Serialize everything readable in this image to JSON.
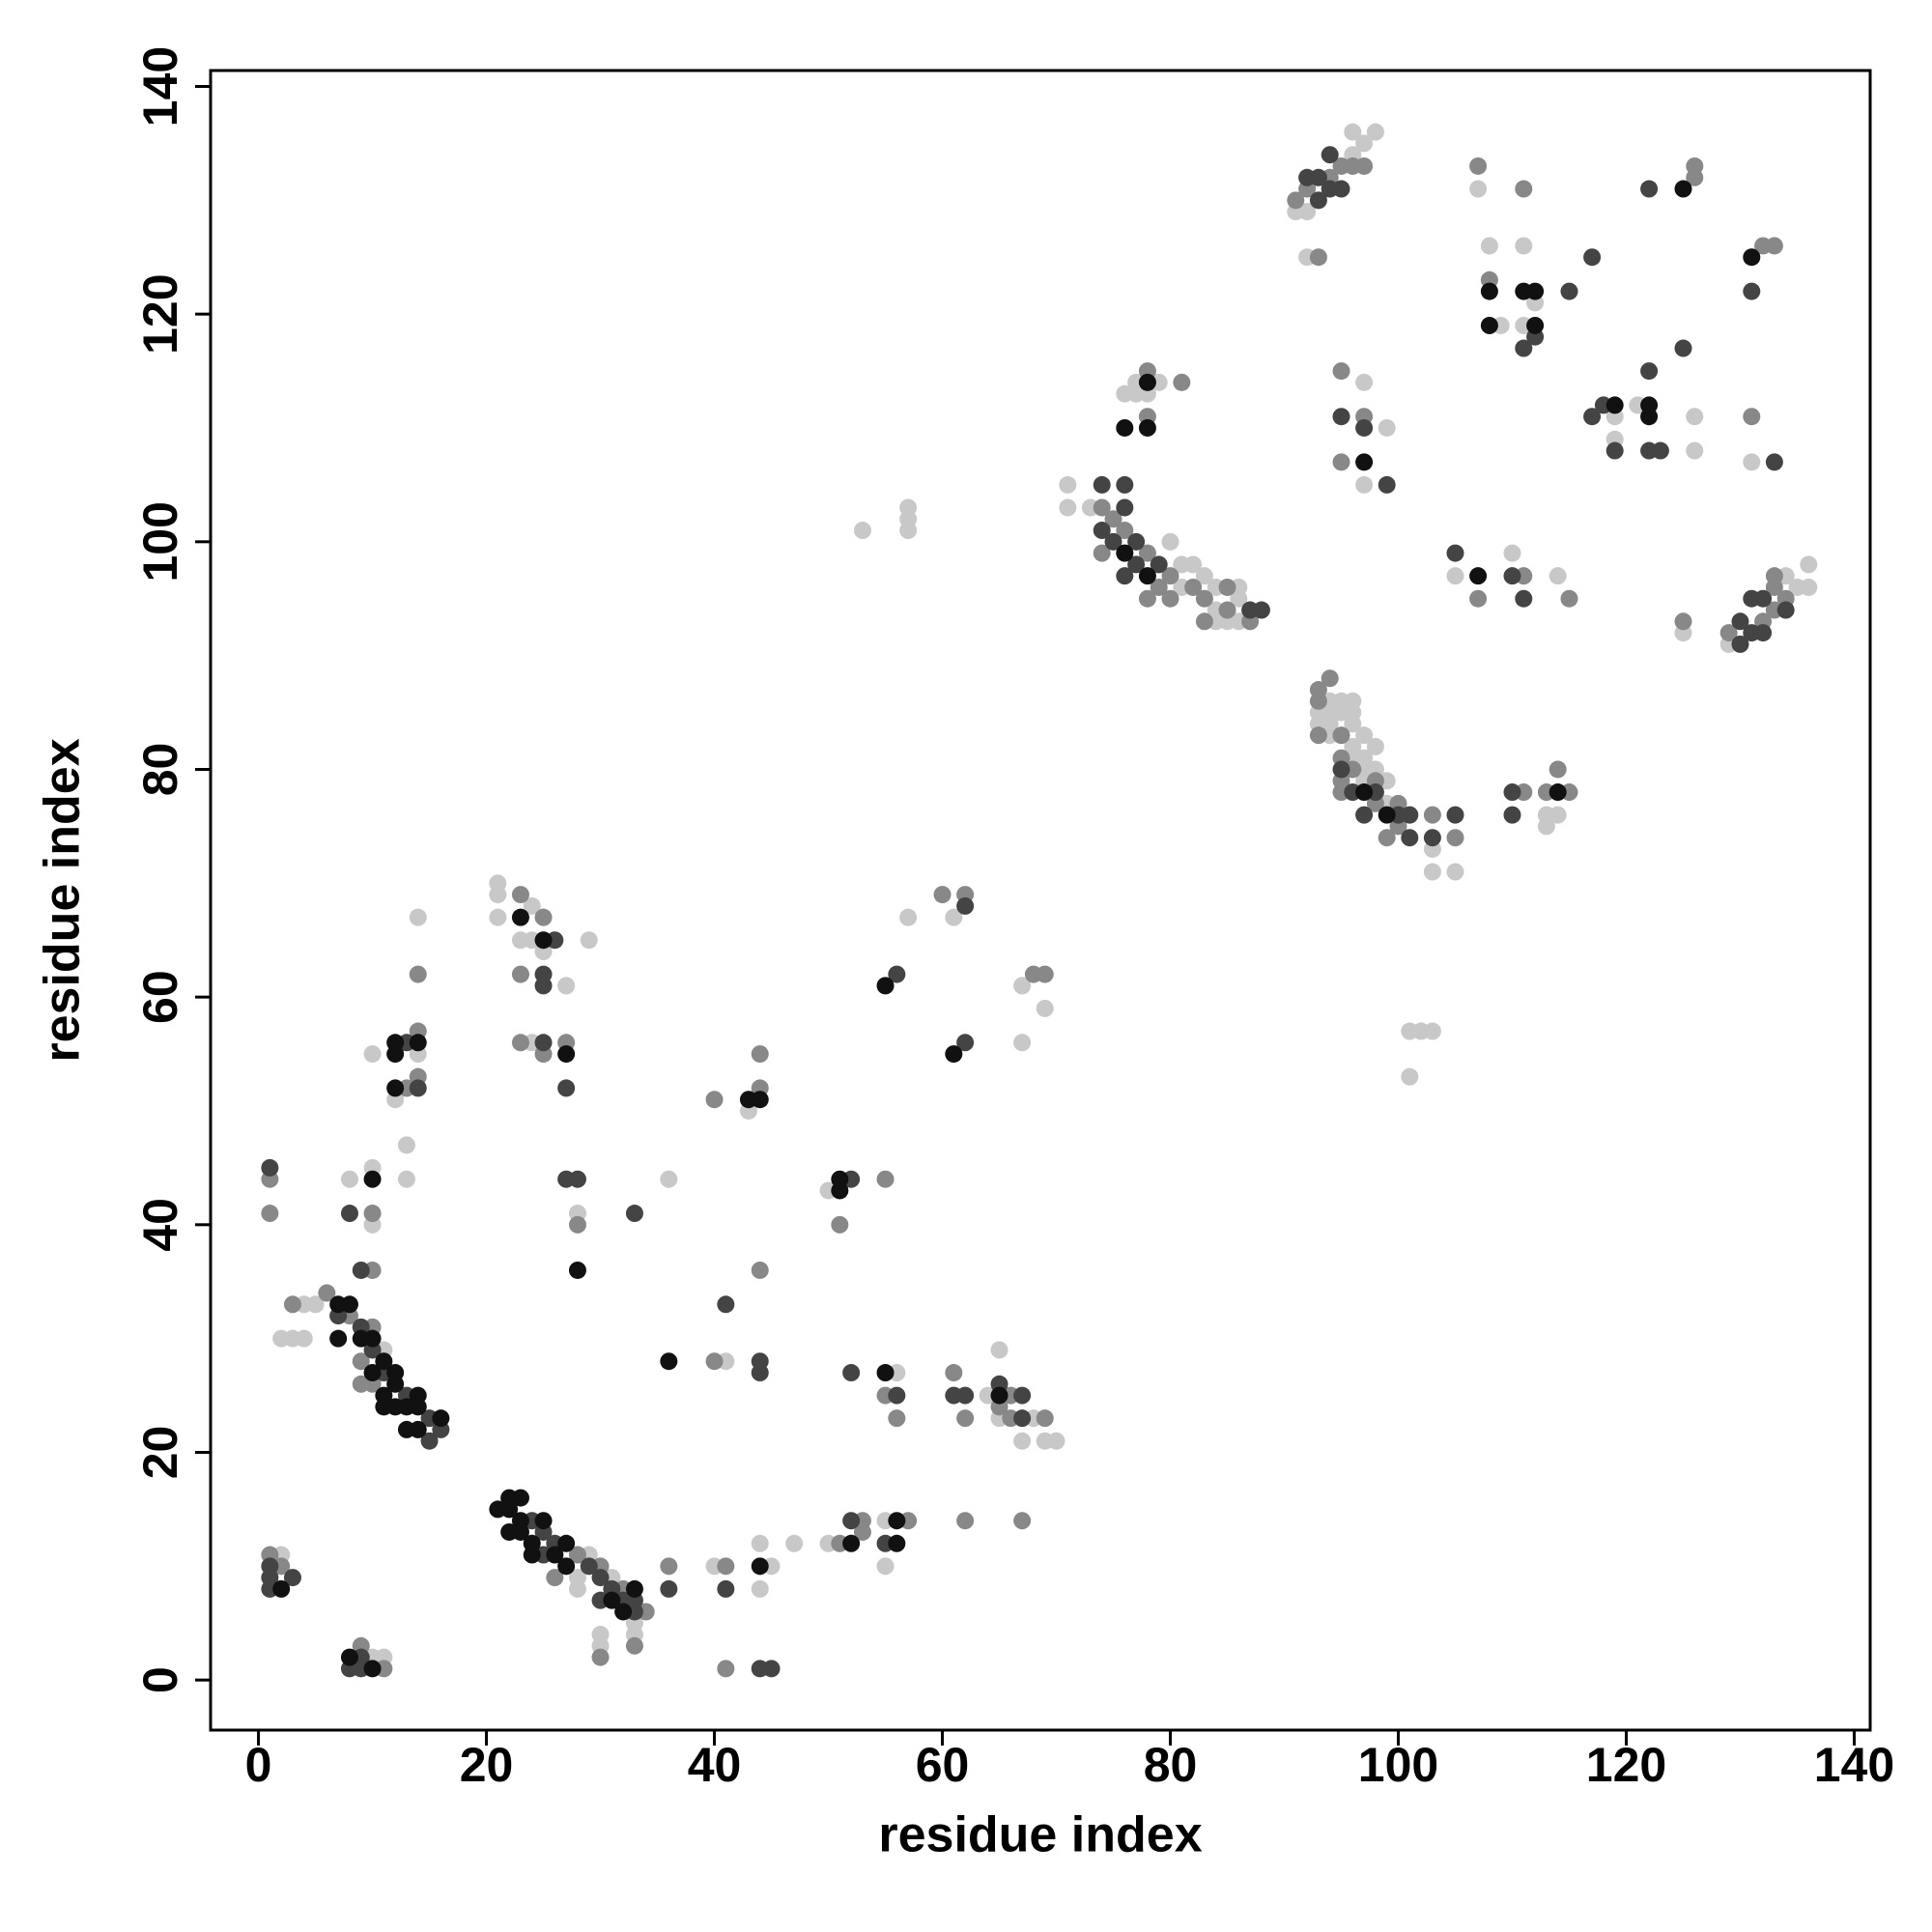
{
  "chart_data": {
    "type": "scatter",
    "x_label": "residue index",
    "y_label": "residue index",
    "xlim": [
      -4.2,
      141.4
    ],
    "ylim": [
      -4.4,
      141.4
    ],
    "xticks": [
      0,
      20,
      40,
      60,
      80,
      100,
      120,
      140
    ],
    "yticks": [
      0,
      20,
      40,
      60,
      80,
      100,
      120,
      140
    ],
    "grid": false,
    "series": [
      {
        "color": "#c8c8c8",
        "x": [
          2,
          10,
          11,
          11,
          4,
          5,
          2,
          3,
          4,
          29,
          28,
          28,
          31,
          33,
          33,
          30,
          30,
          40,
          45,
          44,
          44,
          47,
          50,
          55,
          55,
          41,
          56,
          64,
          65,
          68,
          67,
          69,
          70,
          65,
          8,
          10,
          10,
          13,
          13,
          14,
          12,
          14,
          10,
          21,
          21,
          21,
          24,
          23,
          24,
          25,
          29,
          27,
          24,
          28,
          36,
          43,
          50,
          57,
          61,
          67,
          69,
          67,
          53,
          57,
          57,
          57,
          71,
          71,
          73,
          80,
          81,
          81,
          82,
          83,
          84,
          84,
          86,
          86,
          84,
          85,
          86,
          76,
          77,
          78,
          79,
          77,
          94,
          95,
          96,
          93,
          94,
          95,
          96,
          93,
          94,
          94,
          96,
          97,
          96,
          96,
          97,
          98,
          97,
          98,
          97,
          99,
          99,
          103,
          103,
          105,
          113,
          113,
          114,
          101,
          102,
          103,
          101,
          91,
          92,
          96,
          96,
          97,
          98,
          92,
          97,
          97,
          99,
          105,
          110,
          114,
          107,
          108,
          109,
          111,
          112,
          111,
          119,
          119,
          121,
          126,
          126,
          131,
          125,
          129,
          134,
          135,
          136,
          136
        ],
        "values": [
          11,
          2,
          2,
          29,
          33,
          33,
          30,
          30,
          30,
          11,
          9,
          8,
          9,
          5,
          4,
          4,
          3,
          10,
          10,
          12,
          8,
          12,
          12,
          14,
          10,
          28,
          27,
          25,
          23,
          23,
          21,
          21,
          21,
          29,
          44,
          45,
          40,
          44,
          47,
          55,
          51,
          67,
          55,
          70,
          69,
          67,
          68,
          65,
          65,
          64,
          65,
          61,
          56,
          41,
          44,
          50,
          43,
          67,
          67,
          61,
          59,
          56,
          101,
          103,
          102,
          101,
          105,
          103,
          103,
          100,
          96,
          98,
          98,
          97,
          96,
          94,
          95,
          93,
          93,
          93,
          96,
          113,
          114,
          113,
          114,
          113,
          86,
          86,
          86,
          85,
          85,
          85,
          85,
          84,
          84,
          83,
          84,
          83,
          82,
          81,
          81,
          82,
          80,
          80,
          79,
          79,
          77,
          73,
          71,
          71,
          75,
          76,
          76,
          57,
          57,
          57,
          53,
          129,
          129,
          134,
          136,
          135,
          136,
          125,
          114,
          105,
          110,
          97,
          99,
          97,
          131,
          126,
          119,
          126,
          121,
          119,
          111,
          109,
          112,
          111,
          108,
          107,
          92,
          91,
          97,
          96,
          96,
          98
        ]
      },
      {
        "color": "#888888",
        "x": [
          1,
          2,
          9,
          11,
          6,
          8,
          10,
          9,
          9,
          10,
          3,
          28,
          26,
          30,
          32,
          34,
          33,
          30,
          36,
          41,
          41,
          51,
          53,
          53,
          57,
          62,
          67,
          40,
          55,
          56,
          61,
          62,
          65,
          66,
          66,
          69,
          1,
          1,
          10,
          10,
          14,
          13,
          14,
          14,
          23,
          25,
          23,
          23,
          25,
          27,
          28,
          44,
          40,
          44,
          44,
          51,
          55,
          60,
          62,
          68,
          69,
          74,
          75,
          74,
          76,
          78,
          79,
          78,
          80,
          80,
          82,
          83,
          83,
          85,
          85,
          87,
          78,
          81,
          78,
          93,
          94,
          93,
          93,
          95,
          95,
          96,
          95,
          98,
          95,
          98,
          100,
          99,
          100,
          103,
          105,
          111,
          113,
          114,
          115,
          91,
          92,
          94,
          95,
          96,
          97,
          93,
          95,
          95,
          97,
          107,
          111,
          115,
          107,
          108,
          111,
          126,
          126,
          132,
          133,
          131,
          125,
          129,
          132,
          133,
          133,
          133,
          134
        ],
        "values": [
          11,
          10,
          3,
          1,
          34,
          32,
          31,
          28,
          26,
          26,
          33,
          11,
          9,
          10,
          8,
          6,
          3,
          2,
          10,
          10,
          1,
          12,
          13,
          14,
          14,
          14,
          14,
          28,
          25,
          23,
          27,
          23,
          24,
          25,
          23,
          23,
          44,
          41,
          36,
          41,
          57,
          52,
          53,
          62,
          69,
          67,
          62,
          56,
          55,
          56,
          40,
          36,
          51,
          52,
          55,
          40,
          44,
          69,
          69,
          62,
          62,
          103,
          102,
          99,
          101,
          99,
          96,
          95,
          97,
          95,
          96,
          95,
          93,
          96,
          94,
          93,
          115,
          114,
          111,
          87,
          88,
          86,
          83,
          83,
          81,
          80,
          79,
          79,
          78,
          77,
          77,
          74,
          75,
          76,
          74,
          78,
          78,
          80,
          78,
          130,
          131,
          132,
          133,
          133,
          133,
          125,
          115,
          107,
          111,
          95,
          97,
          95,
          133,
          123,
          131,
          133,
          132,
          126,
          126,
          111,
          93,
          92,
          93,
          94,
          96,
          97,
          95
        ]
      },
      {
        "color": "#444444",
        "x": [
          1,
          1,
          3,
          1,
          9,
          8,
          9,
          7,
          9,
          10,
          11,
          13,
          15,
          16,
          15,
          24,
          25,
          26,
          25,
          29,
          30,
          30,
          31,
          32,
          33,
          33,
          36,
          41,
          44,
          45,
          52,
          55,
          44,
          44,
          52,
          56,
          61,
          62,
          65,
          67,
          67,
          1,
          9,
          8,
          13,
          14,
          26,
          25,
          25,
          25,
          27,
          27,
          28,
          33,
          41,
          52,
          56,
          62,
          62,
          74,
          74,
          75,
          76,
          76,
          77,
          76,
          77,
          79,
          87,
          88,
          95,
          96,
          98,
          97,
          100,
          101,
          101,
          103,
          105,
          110,
          110,
          92,
          93,
          93,
          94,
          94,
          95,
          95,
          97,
          99,
          105,
          110,
          111,
          112,
          111,
          115,
          117,
          117,
          118,
          119,
          122,
          122,
          123,
          122,
          125,
          131,
          133,
          130,
          130,
          131,
          131,
          132,
          132,
          134
        ],
        "values": [
          10,
          9,
          9,
          8,
          2,
          1,
          1,
          32,
          31,
          29,
          27,
          25,
          23,
          22,
          21,
          14,
          13,
          12,
          11,
          10,
          9,
          7,
          8,
          7,
          7,
          6,
          8,
          8,
          1,
          1,
          14,
          12,
          28,
          27,
          27,
          25,
          25,
          25,
          26,
          25,
          23,
          45,
          36,
          41,
          56,
          52,
          65,
          62,
          61,
          56,
          52,
          44,
          44,
          41,
          33,
          44,
          62,
          68,
          56,
          105,
          101,
          100,
          105,
          103,
          100,
          97,
          98,
          98,
          94,
          94,
          80,
          78,
          78,
          76,
          76,
          76,
          74,
          74,
          76,
          78,
          76,
          132,
          132,
          130,
          134,
          131,
          131,
          111,
          110,
          105,
          99,
          97,
          95,
          118,
          117,
          122,
          125,
          111,
          112,
          108,
          115,
          108,
          108,
          131,
          117,
          122,
          107,
          91,
          93,
          92,
          95,
          95,
          92,
          94
        ]
      },
      {
        "color": "#111111",
        "x": [
          2,
          10,
          8,
          7,
          8,
          9,
          10,
          11,
          10,
          12,
          12,
          11,
          14,
          12,
          11,
          13,
          14,
          16,
          13,
          14,
          7,
          21,
          22,
          23,
          22,
          22,
          23,
          23,
          24,
          25,
          24,
          27,
          26,
          27,
          31,
          33,
          32,
          44,
          52,
          56,
          56,
          55,
          65,
          36,
          10,
          12,
          12,
          14,
          12,
          23,
          25,
          27,
          28,
          43,
          44,
          51,
          51,
          55,
          61,
          76,
          78,
          78,
          78,
          76,
          97,
          99,
          114,
          97,
          107,
          108,
          108,
          111,
          112,
          112,
          119,
          122,
          122,
          125,
          131
        ],
        "values": [
          8,
          1,
          2,
          33,
          33,
          30,
          30,
          28,
          27,
          27,
          26,
          25,
          25,
          24,
          24,
          24,
          24,
          23,
          22,
          22,
          30,
          15,
          16,
          16,
          15,
          13,
          14,
          13,
          12,
          14,
          11,
          12,
          11,
          10,
          7,
          8,
          6,
          10,
          12,
          12,
          14,
          27,
          25,
          28,
          44,
          56,
          55,
          56,
          52,
          67,
          65,
          55,
          36,
          51,
          51,
          44,
          43,
          61,
          55,
          99,
          97,
          114,
          110,
          110,
          78,
          76,
          78,
          107,
          97,
          122,
          119,
          122,
          122,
          119,
          112,
          112,
          111,
          131,
          125
        ]
      }
    ]
  }
}
